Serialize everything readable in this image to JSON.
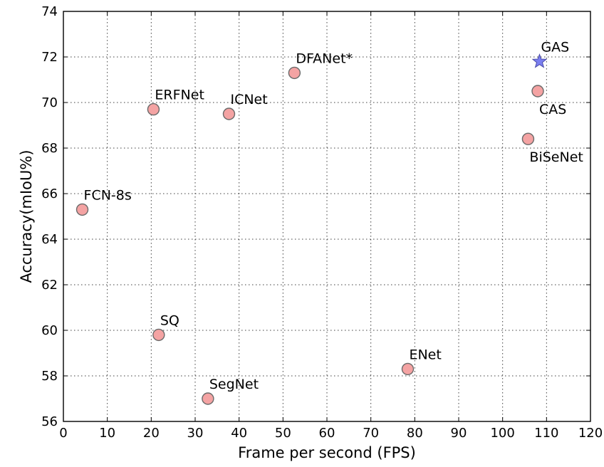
{
  "chart_data": {
    "type": "scatter",
    "title": "",
    "xlabel": "Frame per second (FPS)",
    "ylabel": "Accuracy(mIoU%)",
    "xlim": [
      0,
      120
    ],
    "ylim": [
      56,
      74
    ],
    "xticks": [
      0,
      10,
      20,
      30,
      40,
      50,
      60,
      70,
      80,
      90,
      100,
      110,
      120
    ],
    "yticks": [
      56,
      58,
      60,
      62,
      64,
      66,
      68,
      70,
      72,
      74
    ],
    "grid": true,
    "points": [
      {
        "label": "FCN-8s",
        "x": 4.3,
        "y": 65.3,
        "marker": "circle",
        "color": "#f4a3a3",
        "label_pos": "above"
      },
      {
        "label": "ERFNet",
        "x": 20.5,
        "y": 69.7,
        "marker": "circle",
        "color": "#f4a3a3",
        "label_pos": "above"
      },
      {
        "label": "SQ",
        "x": 21.7,
        "y": 59.8,
        "marker": "circle",
        "color": "#f4a3a3",
        "label_pos": "above"
      },
      {
        "label": "SegNet",
        "x": 32.9,
        "y": 57.0,
        "marker": "circle",
        "color": "#f4a3a3",
        "label_pos": "above"
      },
      {
        "label": "ICNet",
        "x": 37.7,
        "y": 69.5,
        "marker": "circle",
        "color": "#f4a3a3",
        "label_pos": "above"
      },
      {
        "label": "DFANet*",
        "x": 52.6,
        "y": 71.3,
        "marker": "circle",
        "color": "#f4a3a3",
        "label_pos": "above"
      },
      {
        "label": "ENet",
        "x": 78.4,
        "y": 58.3,
        "marker": "circle",
        "color": "#f4a3a3",
        "label_pos": "above"
      },
      {
        "label": "BiSeNet",
        "x": 105.8,
        "y": 68.4,
        "marker": "circle",
        "color": "#f4a3a3",
        "label_pos": "below"
      },
      {
        "label": "CAS",
        "x": 108.0,
        "y": 70.5,
        "marker": "circle",
        "color": "#f4a3a3",
        "label_pos": "below"
      },
      {
        "label": "GAS",
        "x": 108.4,
        "y": 71.8,
        "marker": "star",
        "color": "#7b7ff0",
        "label_pos": "above"
      }
    ]
  }
}
